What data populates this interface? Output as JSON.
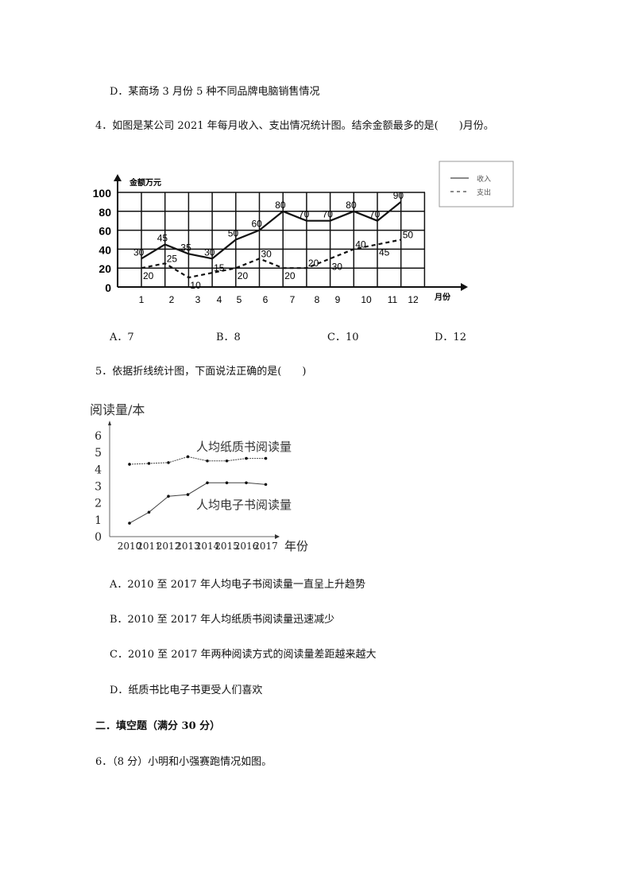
{
  "q3_option_d": "D．某商场 3 月份 5 种不同品牌电脑销售情况",
  "q4": {
    "stem": "4．如图是某公司 2021 年每月收入、支出情况统计图。结余金额最多的是(　　)月份。",
    "options": [
      "A．7",
      "B．8",
      "C．10",
      "D．12"
    ]
  },
  "q5": {
    "stem": "5．依据折线统计图，下面说法正确的是(　　)",
    "options": [
      "A．2010 至 2017 年人均电子书阅读量一直呈上升趋势",
      "B．2010 至 2017 年人均纸质书阅读量迅速减少",
      "C．2010 至 2017 年两种阅读方式的阅读量差距越来越大",
      "D．纸质书比电子书更受人们喜欢"
    ]
  },
  "section2": "二．填空题（满分 30 分）",
  "q6": "6．（8 分）小明和小强赛跑情况如图。",
  "chart_data": [
    {
      "type": "line",
      "ylabel": "金额万元",
      "xlabel": "月份",
      "categories": [
        "1",
        "2",
        "3",
        "4",
        "5",
        "6",
        "7",
        "8",
        "9",
        "10",
        "11",
        "12"
      ],
      "y_ticks": [
        "0",
        "20",
        "40",
        "60",
        "80",
        "100"
      ],
      "ylim": [
        0,
        100
      ],
      "grid": true,
      "legend_position": "top-right",
      "series": [
        {
          "name": "收入",
          "style": "solid",
          "values": [
            30,
            45,
            35,
            30,
            50,
            60,
            80,
            70,
            70,
            80,
            70,
            90
          ]
        },
        {
          "name": "支出",
          "style": "dashed",
          "values": [
            20,
            25,
            10,
            15,
            20,
            30,
            20,
            20,
            30,
            40,
            45,
            50
          ]
        }
      ]
    },
    {
      "type": "line",
      "ylabel": "阅读量/本",
      "xlabel": "年份",
      "categories": [
        "2010",
        "2011",
        "2012",
        "2013",
        "2014",
        "2015",
        "2016",
        "2017"
      ],
      "y_ticks": [
        "0",
        "1",
        "2",
        "3",
        "4",
        "5",
        "6"
      ],
      "ylim": [
        0,
        6
      ],
      "grid": false,
      "series": [
        {
          "name": "人均纸质书阅读量",
          "values": [
            4.3,
            4.35,
            4.4,
            4.75,
            4.5,
            4.5,
            4.65,
            4.65
          ]
        },
        {
          "name": "人均电子书阅读量",
          "values": [
            0.8,
            1.45,
            2.4,
            2.5,
            3.2,
            3.2,
            3.2,
            3.1
          ]
        }
      ]
    }
  ]
}
